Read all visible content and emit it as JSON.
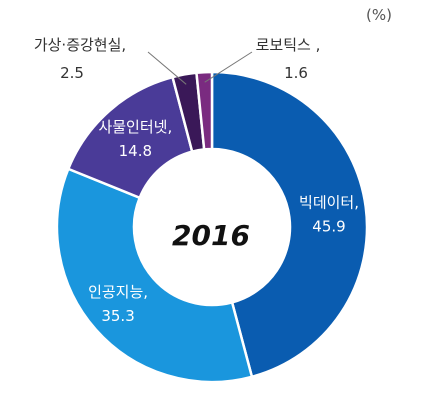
{
  "chart_data": {
    "type": "pie",
    "unit": "(%)",
    "center_label": "2016",
    "slices": [
      {
        "label": "빅데이터,",
        "value": 45.9,
        "value_text": "45.9",
        "color": "#0a5cb0",
        "label_style": "inside"
      },
      {
        "label": "인공지능,",
        "value": 35.3,
        "value_text": "35.3",
        "color": "#1a96dd",
        "label_style": "inside"
      },
      {
        "label": "사물인터넷,",
        "value": 14.8,
        "value_text": "14.8",
        "color": "#4a3b98",
        "label_style": "inside"
      },
      {
        "label": "가상·증강현실,",
        "value": 2.5,
        "value_text": "2.5",
        "color": "#3a1858",
        "label_style": "outside"
      },
      {
        "label": "로보틱스 ,",
        "value": 1.6,
        "value_text": "1.6",
        "color": "#7a2b80",
        "label_style": "outside"
      }
    ]
  }
}
